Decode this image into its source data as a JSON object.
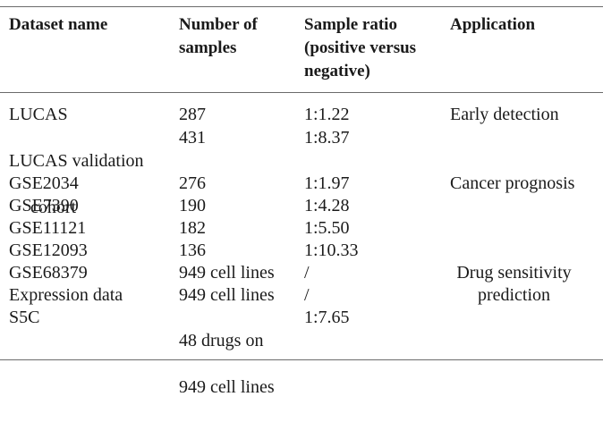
{
  "headers": {
    "dataset": "Dataset name",
    "samples": "Number of\nsamples",
    "ratio": "Sample ratio\n(positive versus\nnegative)",
    "application": "Application"
  },
  "rows": [
    {
      "name": "LUCAS",
      "samples": "287",
      "ratio": "1:1.22",
      "application": "Early detection"
    },
    {
      "name": "LUCAS validation",
      "name_cont": "cohort",
      "samples": "431",
      "ratio": "1:8.37",
      "application": ""
    },
    {
      "name": "GSE2034",
      "samples": "276",
      "ratio": "1:1.97",
      "application": "Cancer prognosis"
    },
    {
      "name": "GSE7390",
      "samples": "190",
      "ratio": "1:4.28",
      "application": ""
    },
    {
      "name": "GSE11121",
      "samples": "182",
      "ratio": "1:5.50",
      "application": ""
    },
    {
      "name": "GSE12093",
      "samples": "136",
      "ratio": "1:10.33",
      "application": ""
    },
    {
      "name": "GSE68379",
      "samples": "949 cell lines",
      "ratio": "/",
      "application": "Drug sensitivity"
    },
    {
      "name": "Expression data",
      "samples": "949 cell lines",
      "ratio": "/",
      "application": "prediction"
    },
    {
      "name": "S5C",
      "samples": "48 drugs on",
      "samples_cont": "949 cell lines",
      "ratio": "1:7.65",
      "application": ""
    }
  ]
}
